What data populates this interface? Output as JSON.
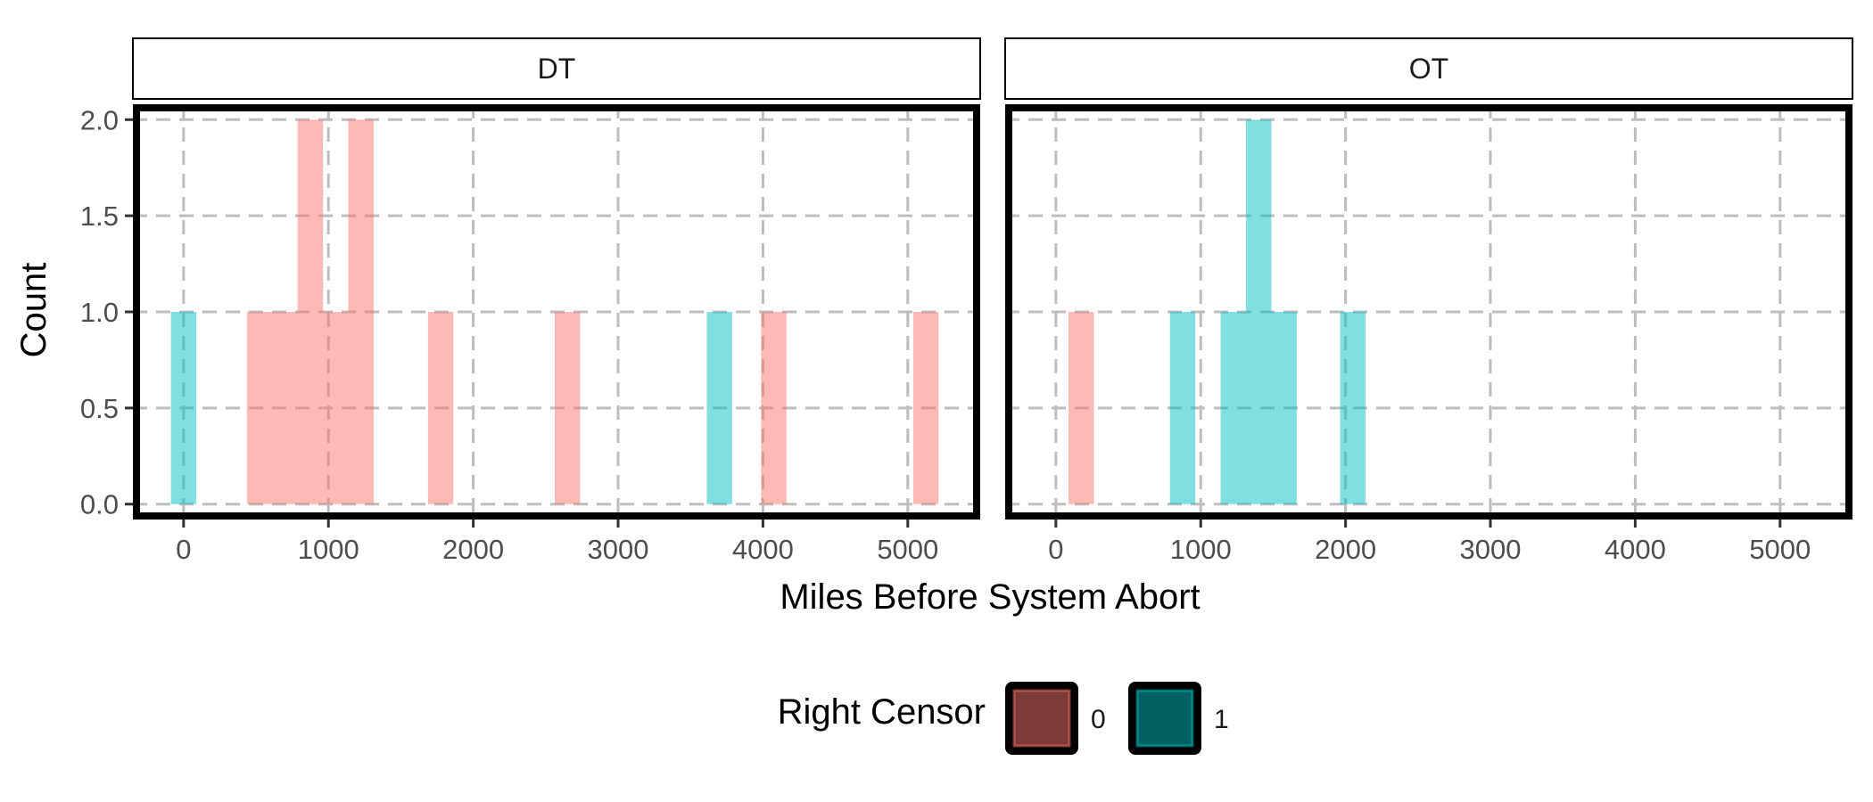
{
  "chart_data": {
    "type": "bar",
    "xlabel": "Miles Before System Abort",
    "ylabel": "Count",
    "xlim": [
      -350,
      5500
    ],
    "ylim": [
      -0.08,
      2.08
    ],
    "x_ticks": [
      0,
      1000,
      2000,
      3000,
      4000,
      5000
    ],
    "x_tick_labels": [
      "0",
      "1000",
      "2000",
      "3000",
      "4000",
      "5000"
    ],
    "y_ticks": [
      0,
      0.5,
      1,
      1.5,
      2
    ],
    "y_tick_labels": [
      "0.0",
      "0.5",
      "1.0",
      "1.5",
      "2.0"
    ],
    "grid": true,
    "bin_width": 175,
    "panels": [
      {
        "strip": "DT",
        "bars": [
          {
            "x": 0,
            "count": 1,
            "censor": "1"
          },
          {
            "x": 525,
            "count": 1,
            "censor": "0"
          },
          {
            "x": 700,
            "count": 1,
            "censor": "0"
          },
          {
            "x": 875,
            "count": 2,
            "censor": "0"
          },
          {
            "x": 1050,
            "count": 1,
            "censor": "0"
          },
          {
            "x": 1225,
            "count": 2,
            "censor": "0"
          },
          {
            "x": 1775,
            "count": 1,
            "censor": "0"
          },
          {
            "x": 2650,
            "count": 1,
            "censor": "0"
          },
          {
            "x": 3700,
            "count": 1,
            "censor": "1"
          },
          {
            "x": 4075,
            "count": 1,
            "censor": "0"
          },
          {
            "x": 5125,
            "count": 1,
            "censor": "0"
          }
        ]
      },
      {
        "strip": "OT",
        "bars": [
          {
            "x": 175,
            "count": 1,
            "censor": "0"
          },
          {
            "x": 875,
            "count": 1,
            "censor": "1"
          },
          {
            "x": 1225,
            "count": 1,
            "censor": "1"
          },
          {
            "x": 1400,
            "count": 2,
            "censor": "1"
          },
          {
            "x": 1575,
            "count": 1,
            "censor": "1"
          },
          {
            "x": 2050,
            "count": 1,
            "censor": "1"
          }
        ]
      }
    ],
    "legend": {
      "title": "Right Censor",
      "position": "bottom",
      "entries": [
        {
          "label": "0",
          "color": "#F8766D"
        },
        {
          "label": "1",
          "color": "#00BFC4"
        }
      ]
    }
  }
}
